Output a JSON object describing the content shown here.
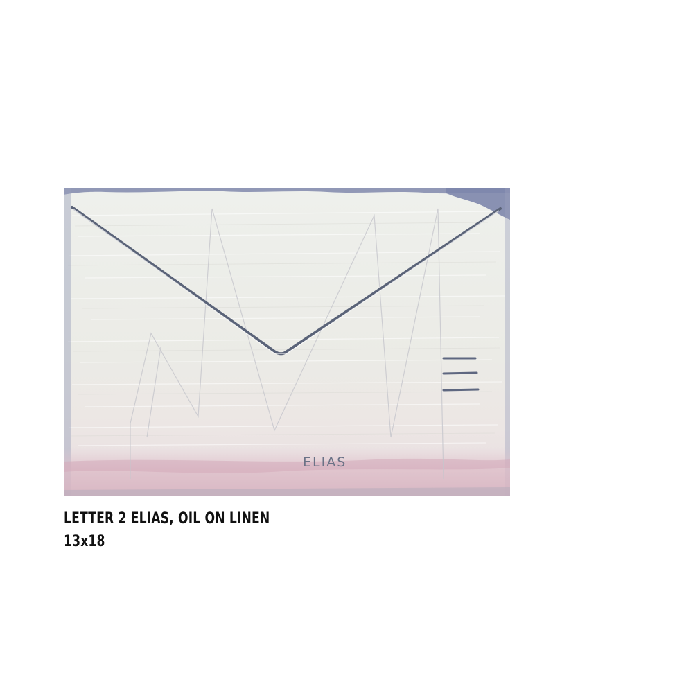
{
  "artwork": {
    "name": "envelope-painting",
    "painted_text": "ELIAS",
    "colors": {
      "paint_white": "#ecece6",
      "envelope_line": "#5a6378",
      "blue_edge": "#7f87ad",
      "pink_wash": "#d9b9c4",
      "pencil_grey": "#c9c9cf"
    }
  },
  "caption": {
    "title_line": "LETTER 2 ELIAS, OIL ON LINEN",
    "size_line": "13x18"
  }
}
